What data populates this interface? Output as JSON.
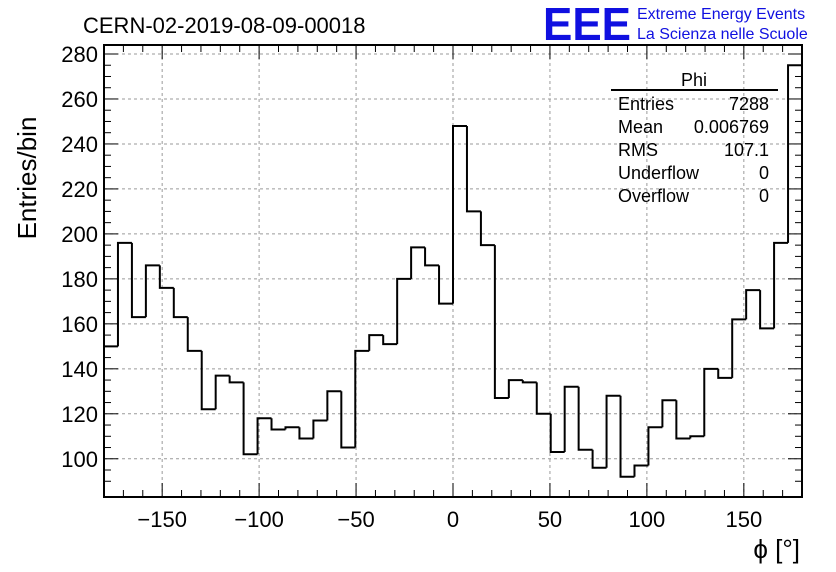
{
  "chart_data": {
    "type": "histogram",
    "title": "CERN-02-2019-08-09-00018",
    "xlabel": "ϕ [°]",
    "ylabel": "Entries/bin",
    "xlim": [
      -180,
      180
    ],
    "ylim": [
      83,
      284
    ],
    "xticks": [
      -150,
      -100,
      -50,
      0,
      50,
      100,
      150
    ],
    "yticks": [
      100,
      120,
      140,
      160,
      180,
      200,
      220,
      240,
      260,
      280
    ],
    "grid": true,
    "bin_width": 7.2,
    "bin_low_edge": -180,
    "values": [
      150,
      196,
      163,
      186,
      176,
      163,
      148,
      122,
      137,
      134,
      102,
      118,
      113,
      114,
      109,
      117,
      130,
      105,
      148,
      155,
      151,
      180,
      194,
      186,
      169,
      248,
      210,
      195,
      127,
      135,
      134,
      120,
      103,
      132,
      104,
      96,
      128,
      92,
      97,
      114,
      126,
      109,
      110,
      140,
      136,
      162,
      175,
      158,
      196,
      275
    ],
    "series_name": "Phi",
    "stats_box": {
      "title": "Phi",
      "rows": [
        {
          "label": "Entries",
          "value": "7288"
        },
        {
          "label": "Mean",
          "value": "0.006769"
        },
        {
          "label": "RMS",
          "value": "107.1"
        },
        {
          "label": "Underflow",
          "value": "0"
        },
        {
          "label": "Overflow",
          "value": "0"
        }
      ]
    },
    "logo": {
      "mark": "EEE",
      "line1": "Extreme Energy Events",
      "line2": "La Scienza nelle Scuole",
      "color": "#1010e0"
    }
  }
}
